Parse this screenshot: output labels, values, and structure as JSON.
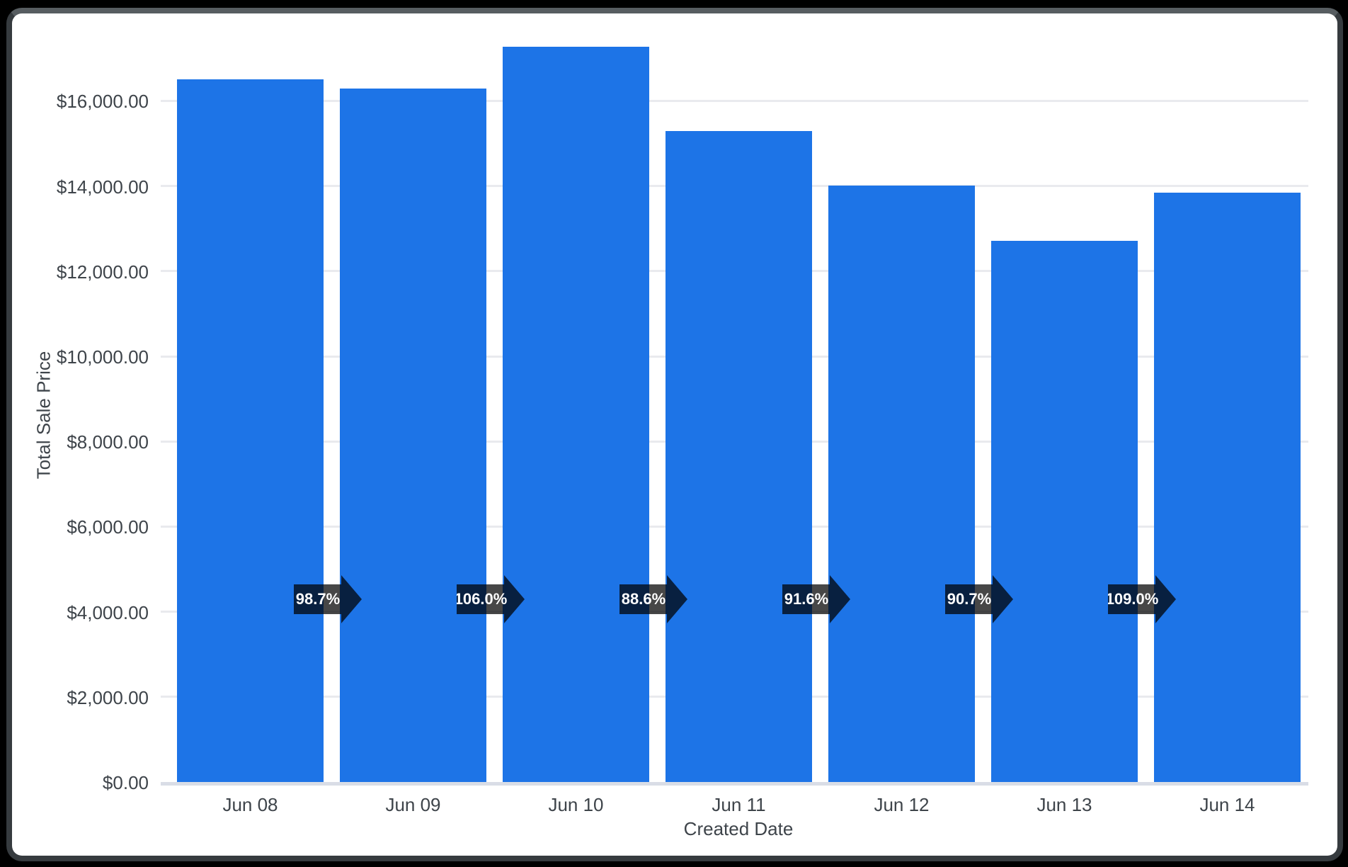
{
  "chart_data": {
    "type": "bar",
    "title": "",
    "xlabel": "Created Date",
    "ylabel": "Total Sale Price",
    "categories": [
      "Jun 08",
      "Jun 09",
      "Jun 10",
      "Jun 11",
      "Jun 12",
      "Jun 13",
      "Jun 14"
    ],
    "values": [
      16500,
      16290,
      17265,
      15295,
      14010,
      12705,
      13850
    ],
    "pct_change_labels": [
      "98.7%",
      "106.0%",
      "88.6%",
      "91.6%",
      "90.7%",
      "109.0%"
    ],
    "y_ticks": [
      "$0.00",
      "$2,000.00",
      "$4,000.00",
      "$6,000.00",
      "$8,000.00",
      "$10,000.00",
      "$12,000.00",
      "$14,000.00",
      "$16,000.00"
    ],
    "y_tick_step": 2000,
    "ylim": [
      0,
      18000
    ],
    "grid": true,
    "legend": "none",
    "colors": {
      "bar": "#1d74e7",
      "arrow_fill": "rgba(0,0,0,0.72)",
      "arrow_text": "#ffffff",
      "axis_text": "#3e444a",
      "gridline": "#e9eaee",
      "baseline": "#d9dde6",
      "card_bg": "#ffffff",
      "frame_bg": "#000000"
    }
  }
}
